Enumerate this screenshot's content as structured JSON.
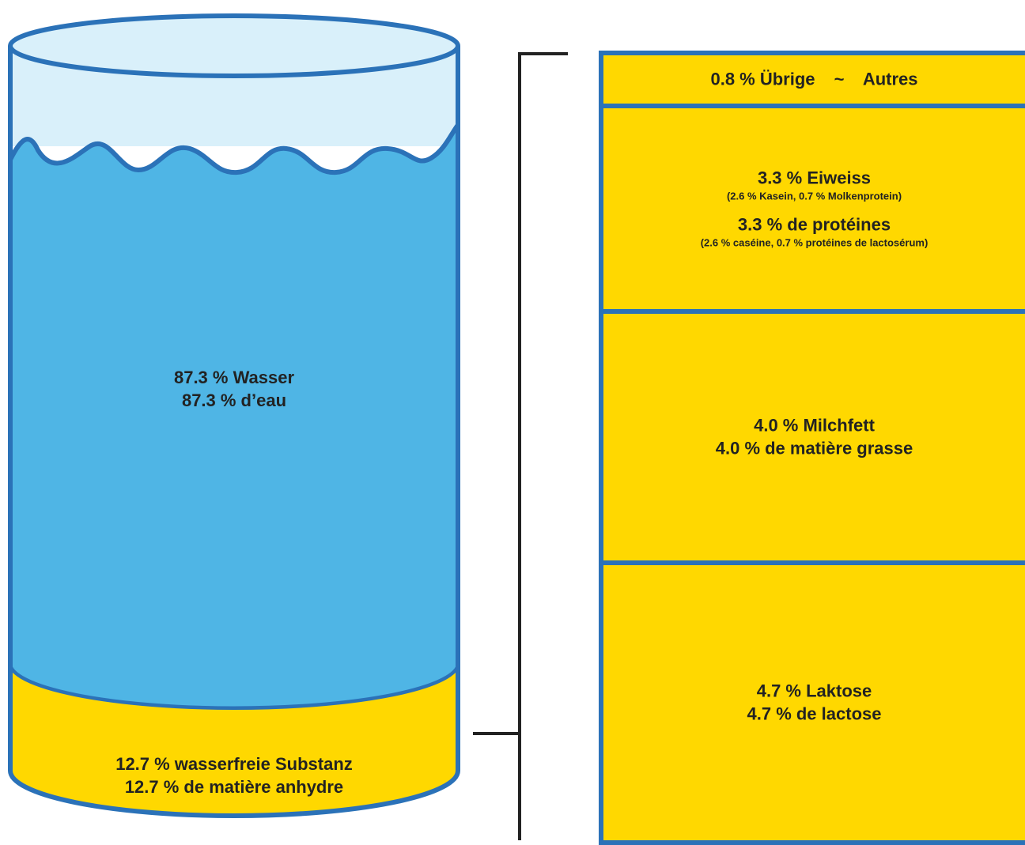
{
  "colors": {
    "water": "#4FB5E5",
    "water_top": "#D9F0FA",
    "outline": "#2B72B8",
    "solids": "#FFD800",
    "bracket": "#222222",
    "text": "#222222"
  },
  "cylinder": {
    "water_label_de": "87.3 % Wasser",
    "water_label_fr": "87.3 % d’eau",
    "solids_label_de": "12.7 % wasserfreie Substanz",
    "solids_label_fr": "12.7 % de matière anhydre"
  },
  "components": {
    "other": {
      "de": "0.8 % Übrige",
      "sep": "~",
      "fr": "Autres"
    },
    "protein": {
      "de": "3.3 % Eiweiss",
      "de_detail": "(2.6 % Kasein, 0.7 % Molkenprotein)",
      "fr": "3.3 % de protéines",
      "fr_detail": "(2.6 % caséine, 0.7 % protéines de lactosérum)"
    },
    "fat": {
      "de": "4.0 % Milchfett",
      "fr": "4.0 % de matière grasse"
    },
    "lactose": {
      "de": "4.7 % Laktose",
      "fr": "4.7 % de lactose"
    }
  }
}
